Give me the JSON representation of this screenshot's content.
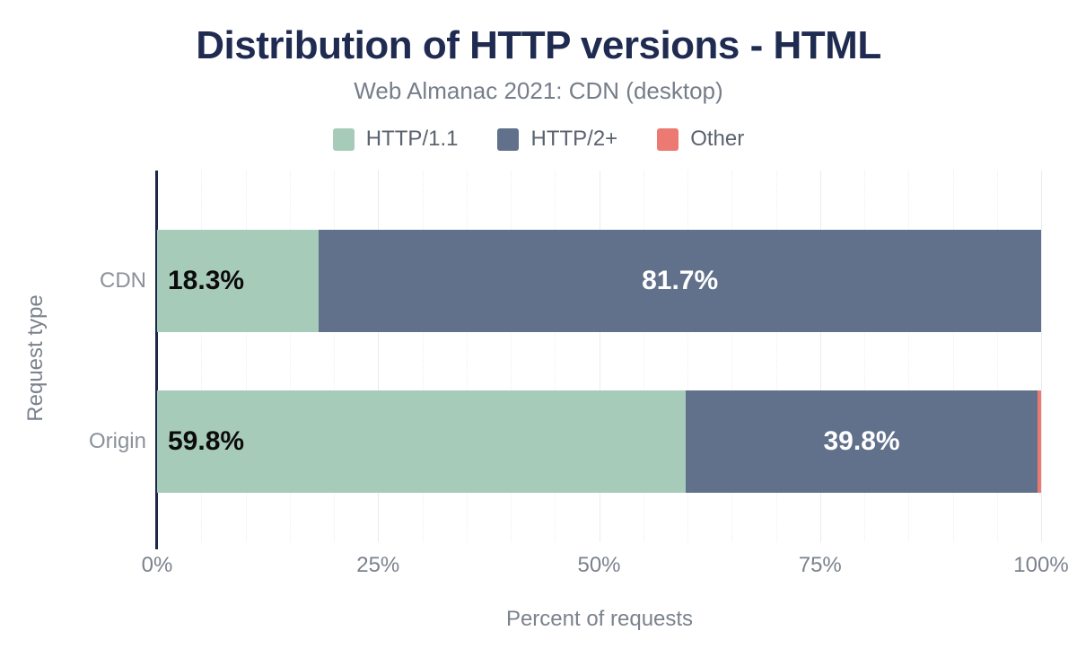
{
  "header": {
    "title": "Distribution of HTTP versions - HTML",
    "subtitle": "Web Almanac 2021: CDN (desktop)"
  },
  "legend": {
    "items": [
      {
        "label": "HTTP/1.1",
        "color": "#a7cbb9"
      },
      {
        "label": "HTTP/2+",
        "color": "#61718b"
      },
      {
        "label": "Other",
        "color": "#ec7a72"
      }
    ]
  },
  "chart_data": {
    "type": "bar",
    "orientation": "horizontal",
    "stacked": true,
    "title": "Distribution of HTTP versions - HTML",
    "subtitle": "Web Almanac 2021: CDN (desktop)",
    "xlabel": "Percent of requests",
    "ylabel": "Request type",
    "xlim": [
      0,
      100
    ],
    "x_ticks": [
      {
        "value": 0,
        "label": "0%"
      },
      {
        "value": 25,
        "label": "25%"
      },
      {
        "value": 50,
        "label": "50%"
      },
      {
        "value": 75,
        "label": "75%"
      },
      {
        "value": 100,
        "label": "100%"
      }
    ],
    "grid": {
      "minor_step": 5,
      "major_step": 25,
      "axis_color": "#1b2948"
    },
    "categories": [
      "CDN",
      "Origin"
    ],
    "series": [
      {
        "name": "HTTP/1.1",
        "color": "#a7cbb9",
        "values": [
          18.3,
          59.8
        ],
        "labels": [
          "18.3%",
          "59.8%"
        ],
        "label_color": "#0c0c0c",
        "label_align": "left"
      },
      {
        "name": "HTTP/2+",
        "color": "#61718b",
        "values": [
          81.7,
          39.8
        ],
        "labels": [
          "81.7%",
          "39.8%"
        ],
        "label_color": "#ffffff",
        "label_align": "center"
      },
      {
        "name": "Other",
        "color": "#ec7a72",
        "values": [
          0.0,
          0.4
        ],
        "labels": [
          "",
          ""
        ],
        "label_color": "#ffffff",
        "label_align": "center"
      }
    ]
  }
}
